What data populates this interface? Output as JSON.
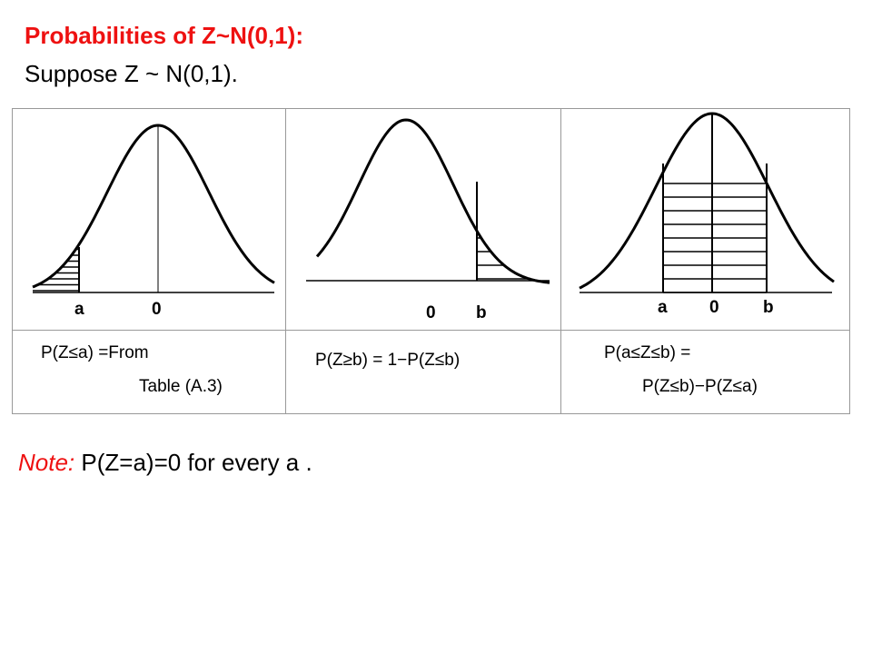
{
  "title": "Probabilities of Z~N(0,1):",
  "subtitle": "Suppose Z ~ N(0,1).",
  "panels": [
    {
      "axis_labels": [
        "a",
        "0"
      ],
      "caption_line1": "P(Z≤a) =From",
      "caption_line2": "Table (A.3)"
    },
    {
      "axis_labels": [
        "0",
        "b"
      ],
      "caption_line1": "P(Z≥b) = 1−P(Z≤b)"
    },
    {
      "axis_labels": [
        "a",
        "0",
        "b"
      ],
      "caption_line1": "P(a≤Z≤b) =",
      "caption_line2": "P(Z≤b)−P(Z≤a)"
    }
  ],
  "note": {
    "lead": "Note:",
    "text": " P(Z=a)=0  for every a ."
  },
  "colors": {
    "title": "#ee1111",
    "note_lead": "#ee1111",
    "curve": "#000000",
    "border": "#999999"
  }
}
